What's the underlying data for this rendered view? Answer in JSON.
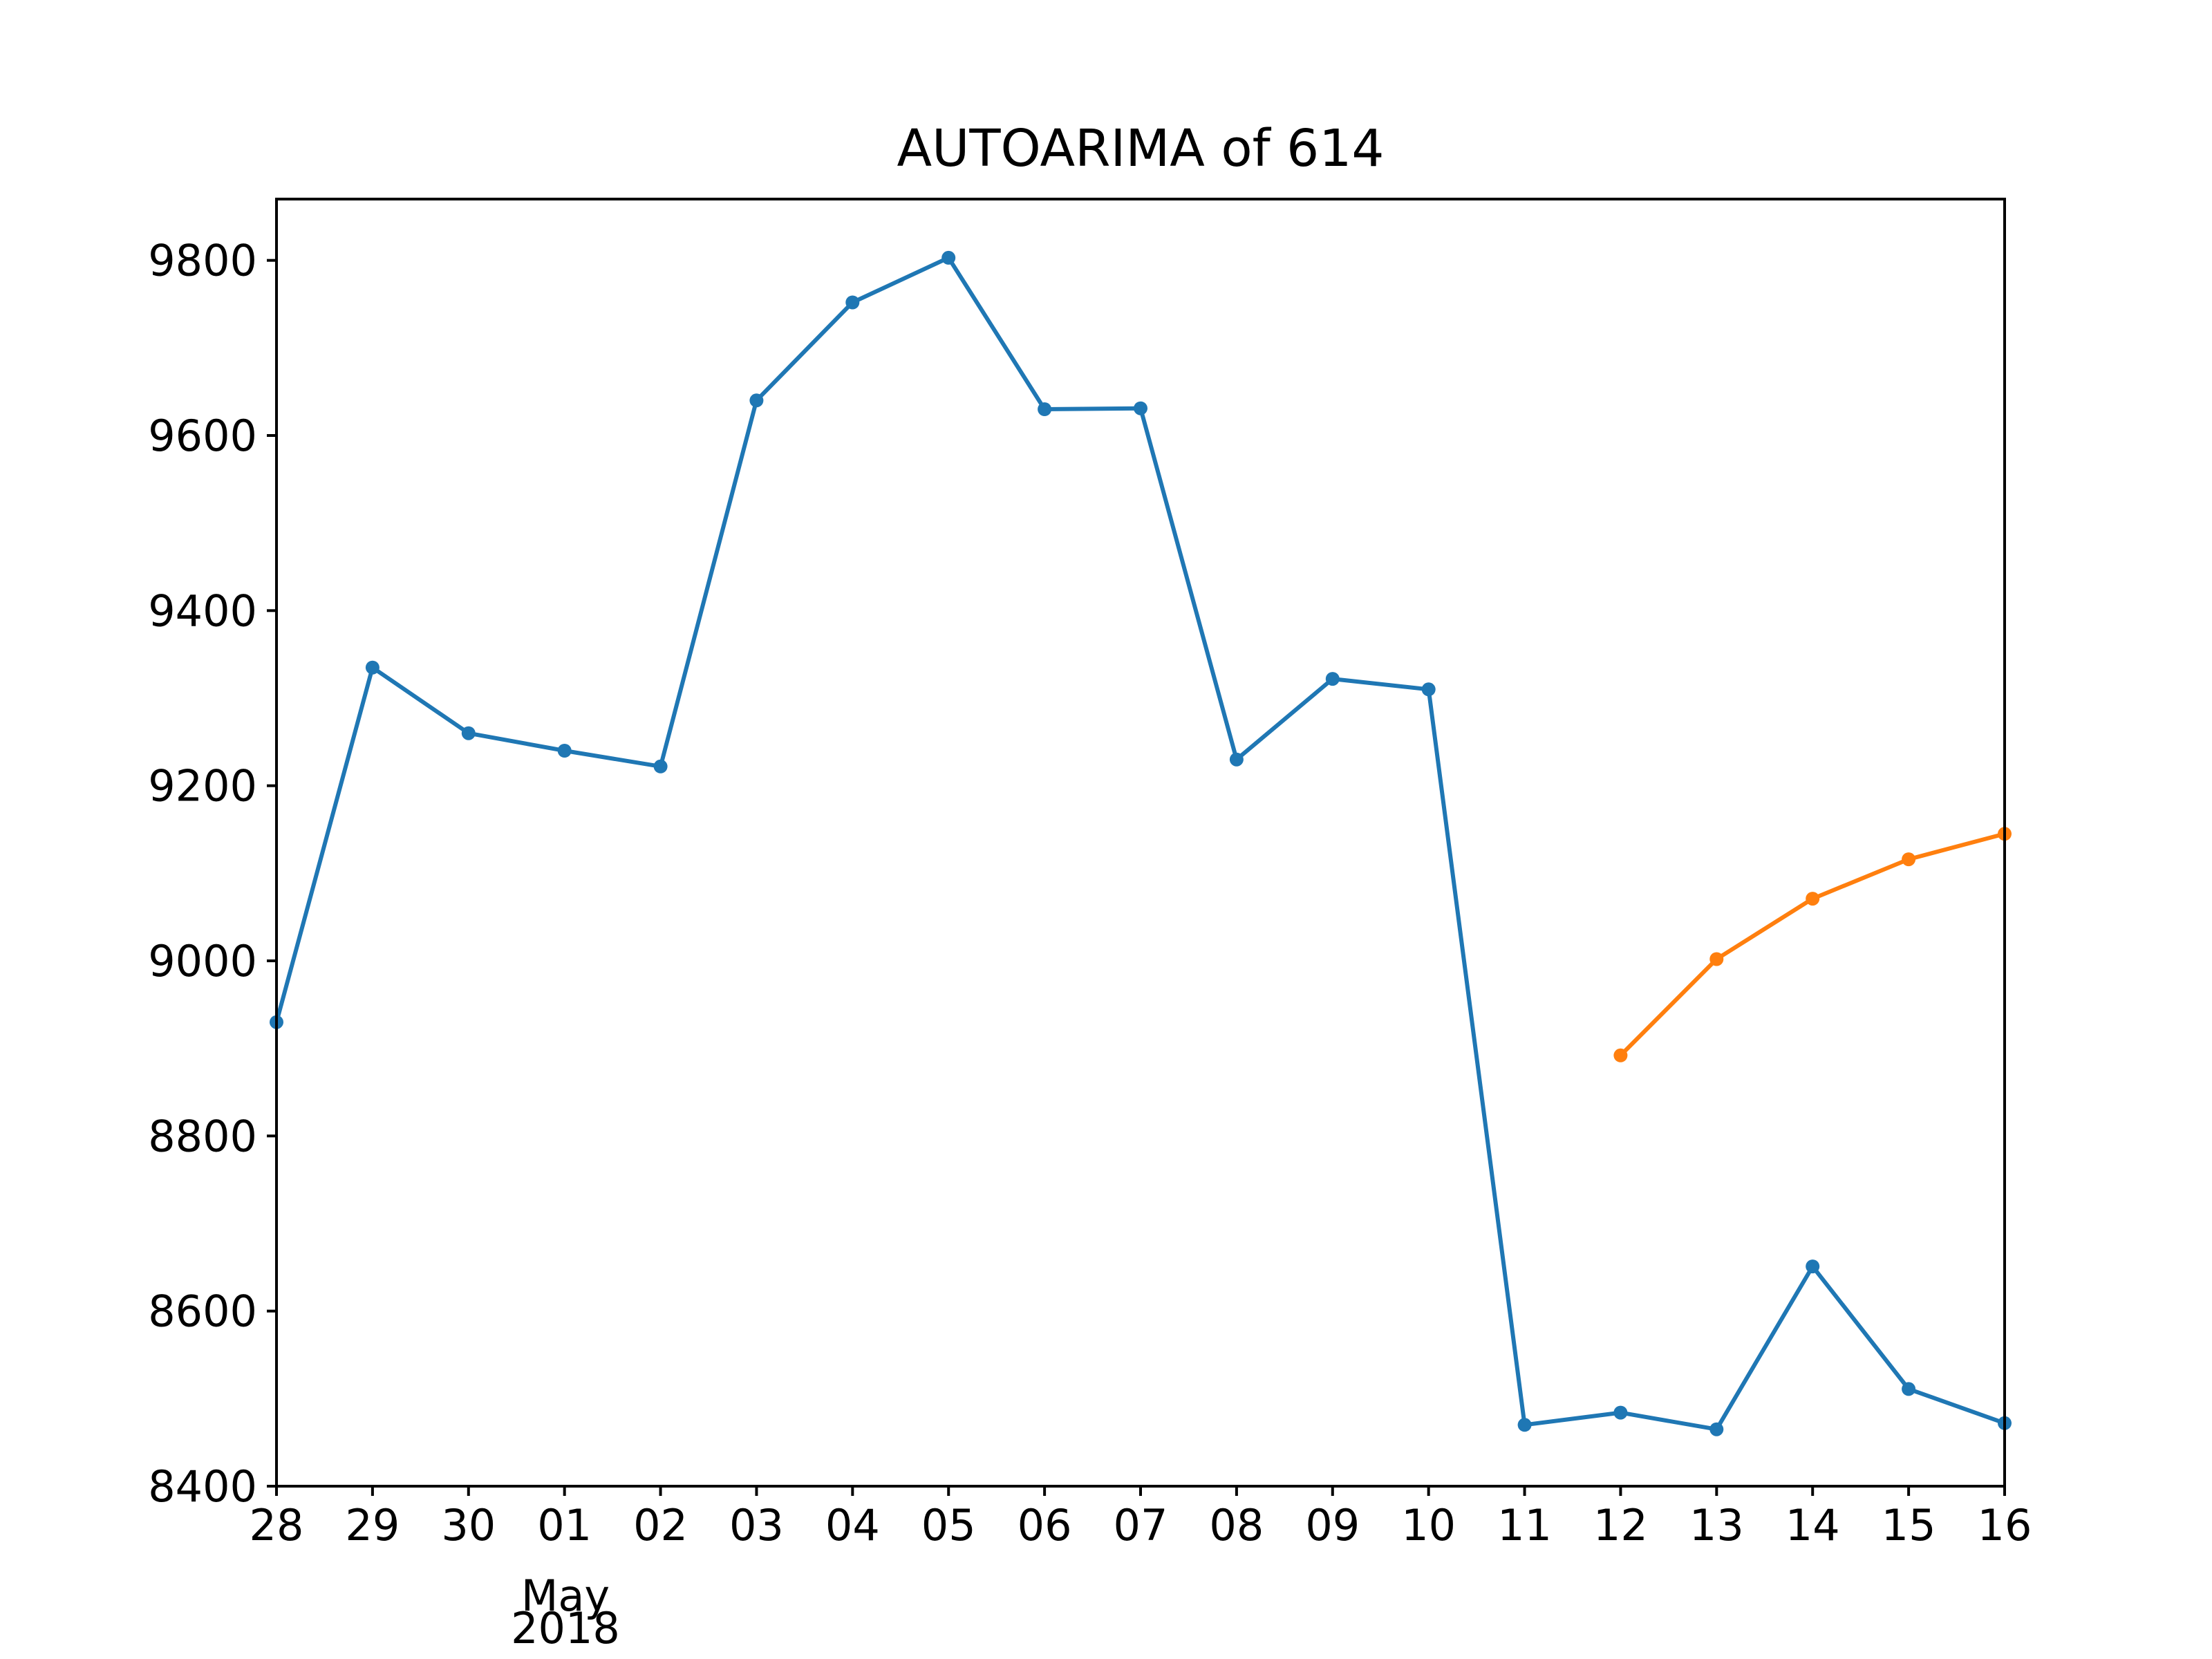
{
  "chart_data": {
    "type": "line",
    "title": "AUTOARIMA of 614",
    "xlabel": "",
    "ylabel": "",
    "x_ticks": [
      "28",
      "29",
      "30",
      "01",
      "02",
      "03",
      "04",
      "05",
      "06",
      "07",
      "08",
      "09",
      "10",
      "11",
      "12",
      "13",
      "14",
      "15",
      "16"
    ],
    "x_secondary_label": [
      "May",
      "2018"
    ],
    "x_range": [
      "2018-04-28",
      "2018-05-16"
    ],
    "ylim": [
      8400,
      9870
    ],
    "y_ticks": [
      8400,
      8600,
      8800,
      9000,
      9200,
      9400,
      9600,
      9800
    ],
    "grid": false,
    "legend": "none",
    "series": [
      {
        "color": "#1f77b4",
        "x": [
          "2018-04-28",
          "2018-04-29",
          "2018-04-30",
          "2018-05-01",
          "2018-05-02",
          "2018-05-03",
          "2018-05-04",
          "2018-05-05",
          "2018-05-06",
          "2018-05-07",
          "2018-05-08",
          "2018-05-09",
          "2018-05-10",
          "2018-05-11",
          "2018-05-12",
          "2018-05-13",
          "2018-05-14",
          "2018-05-15",
          "2018-05-16"
        ],
        "values": [
          8930,
          9335,
          9260,
          9240,
          9222,
          9640,
          9752,
          9803,
          9630,
          9631,
          9230,
          9322,
          9310,
          8470,
          8484,
          8465,
          8651,
          8511,
          8472
        ]
      },
      {
        "color": "#ff7f0e",
        "x": [
          "2018-05-12",
          "2018-05-13",
          "2018-05-14",
          "2018-05-15",
          "2018-05-16"
        ],
        "values": [
          8892,
          9002,
          9071,
          9116,
          9145
        ]
      }
    ]
  }
}
